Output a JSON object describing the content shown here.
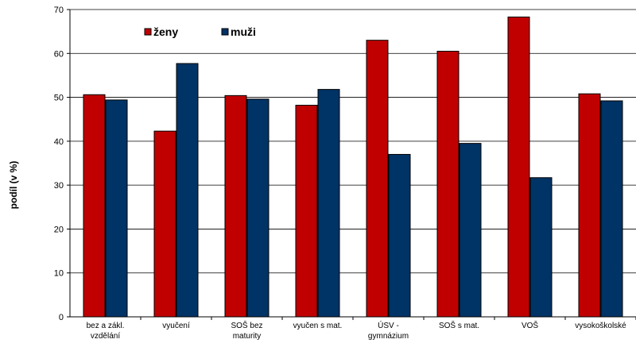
{
  "chart_data": {
    "type": "bar",
    "title": "",
    "xlabel": "",
    "ylabel": "podíl (v %)",
    "ylim": [
      0,
      70
    ],
    "yticks": [
      0,
      10,
      20,
      30,
      40,
      50,
      60,
      70
    ],
    "grid": true,
    "legend_position": "top-left",
    "categories": [
      [
        "bez a zákl.",
        "vzdělání"
      ],
      [
        "vyučení"
      ],
      [
        "SOŠ bez",
        "maturity"
      ],
      [
        "vyučen s mat."
      ],
      [
        "ÚSV -",
        "gymnázium"
      ],
      [
        "SOŠ s mat."
      ],
      [
        "VOŠ"
      ],
      [
        "vysokoškolské"
      ]
    ],
    "series": [
      {
        "name": "ženy",
        "color": "#c00000",
        "values": [
          50.6,
          42.3,
          50.4,
          48.2,
          63.0,
          60.5,
          68.3,
          50.8
        ]
      },
      {
        "name": "muži",
        "color": "#003366",
        "values": [
          49.4,
          57.7,
          49.6,
          51.8,
          37.0,
          39.5,
          31.7,
          49.2
        ]
      }
    ]
  }
}
